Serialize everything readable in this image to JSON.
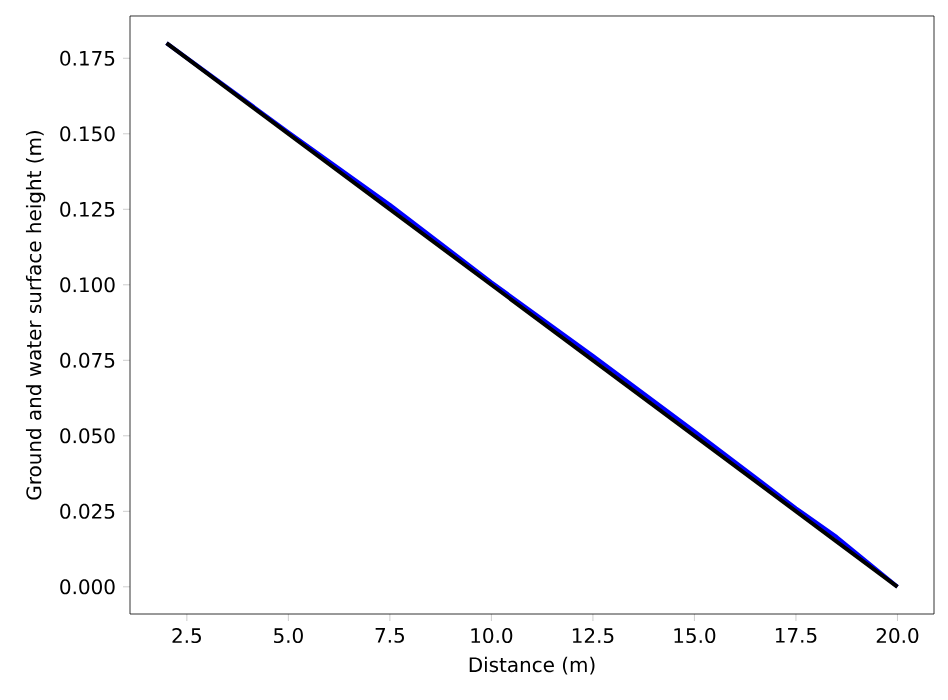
{
  "chart_data": {
    "type": "line",
    "xlabel": "Distance (m)",
    "ylabel": "Ground and water surface height (m)",
    "series": [
      {
        "color": "#0000ff",
        "x": [
          2,
          5,
          7.5,
          10,
          12.5,
          15,
          17.5,
          18.5,
          20
        ],
        "values": [
          0.18,
          0.1505,
          0.1265,
          0.1008,
          0.0765,
          0.0515,
          0.026,
          0.0165,
          0
        ]
      },
      {
        "color": "#000000",
        "x": [
          2,
          20
        ],
        "values": [
          0.18,
          0
        ]
      }
    ],
    "xlim": [
      1.1,
      20.9
    ],
    "ylim": [
      -0.009,
      0.189
    ],
    "xticks": [
      2.5,
      {
        "value": 5,
        "label": "5.0"
      },
      7.5,
      {
        "value": 10,
        "label": "10.0"
      },
      12.5,
      {
        "value": 15,
        "label": "15.0"
      },
      17.5,
      {
        "value": 20,
        "label": "20.0"
      }
    ],
    "yticks": [
      {
        "value": 0,
        "label": "0.000"
      },
      0.025,
      {
        "value": 0.05,
        "label": "0.050"
      },
      0.075,
      {
        "value": 0.1,
        "label": "0.100"
      },
      0.125,
      {
        "value": 0.15,
        "label": "0.150"
      },
      0.175
    ],
    "grid": false
  }
}
